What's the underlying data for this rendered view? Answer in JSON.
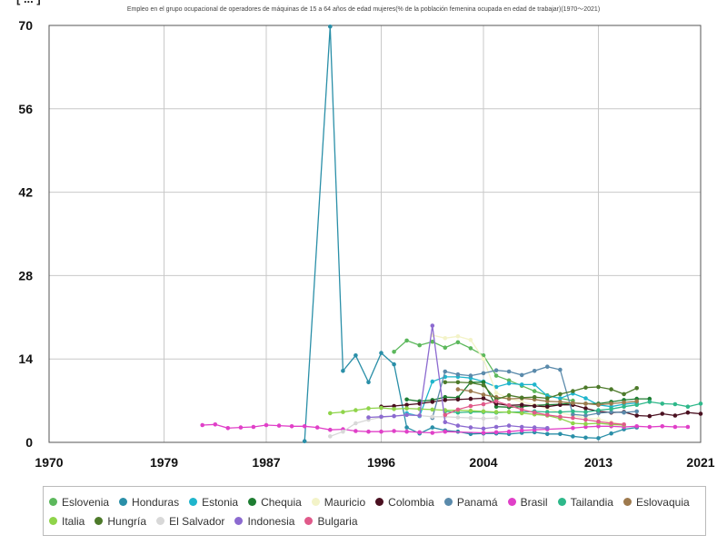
{
  "chart_data": {
    "type": "line",
    "title": "Empleo en el grupo ocupacional de operadores de máquinas de 15 a 64 años de edad mujeres(% de la población femenina ocupada en edad de trabajar)(1970〜2021)",
    "corner_label": "[ ... ]",
    "xlabel": "",
    "ylabel": "",
    "xlim": [
      1970,
      2021
    ],
    "ylim": [
      0,
      70
    ],
    "x_ticks": [
      "1970",
      "1979",
      "1987",
      "1996",
      "2004",
      "2013",
      "2021"
    ],
    "y_ticks": [
      "0",
      "14",
      "28",
      "42",
      "56",
      "70"
    ],
    "grid": true,
    "legend_position": "bottom",
    "series": [
      {
        "name": "Eslovenia",
        "color": "#5cb85c",
        "points": [
          [
            1997,
            15.2
          ],
          [
            1998,
            17.1
          ],
          [
            1999,
            16.3
          ],
          [
            2000,
            16.9
          ],
          [
            2001,
            15.9
          ],
          [
            2002,
            16.8
          ],
          [
            2003,
            15.8
          ],
          [
            2004,
            14.6
          ],
          [
            2005,
            11.2
          ],
          [
            2006,
            10.4
          ],
          [
            2007,
            9.5
          ],
          [
            2008,
            8.6
          ],
          [
            2009,
            7.9
          ],
          [
            2010,
            7.4
          ],
          [
            2011,
            7.0
          ]
        ]
      },
      {
        "name": "Honduras",
        "color": "#2a8fa8",
        "points": [
          [
            1990,
            0.2
          ],
          [
            1992,
            69.8
          ],
          [
            1993,
            12.0
          ],
          [
            1994,
            14.6
          ],
          [
            1995,
            10.1
          ],
          [
            1996,
            15.0
          ],
          [
            1997,
            13.1
          ],
          [
            1998,
            2.5
          ],
          [
            1999,
            1.5
          ],
          [
            2000,
            2.5
          ],
          [
            2001,
            2.0
          ],
          [
            2002,
            1.8
          ],
          [
            2003,
            1.4
          ],
          [
            2004,
            1.5
          ],
          [
            2005,
            1.5
          ],
          [
            2006,
            1.4
          ],
          [
            2007,
            1.6
          ],
          [
            2008,
            1.7
          ],
          [
            2009,
            1.4
          ],
          [
            2010,
            1.4
          ],
          [
            2011,
            1.0
          ],
          [
            2012,
            0.8
          ],
          [
            2013,
            0.7
          ],
          [
            2014,
            1.5
          ],
          [
            2015,
            2.2
          ],
          [
            2016,
            2.5
          ]
        ]
      },
      {
        "name": "Estonia",
        "color": "#1fb5cc",
        "points": [
          [
            1998,
            4.9
          ],
          [
            1999,
            4.4
          ],
          [
            2000,
            10.2
          ],
          [
            2001,
            11.0
          ],
          [
            2002,
            11.0
          ],
          [
            2003,
            10.8
          ],
          [
            2004,
            10.2
          ],
          [
            2005,
            9.3
          ],
          [
            2006,
            9.9
          ],
          [
            2007,
            9.7
          ],
          [
            2008,
            9.7
          ],
          [
            2009,
            7.8
          ],
          [
            2010,
            7.4
          ],
          [
            2011,
            8.2
          ],
          [
            2012,
            7.4
          ],
          [
            2013,
            6.3
          ],
          [
            2014,
            6.0
          ],
          [
            2015,
            6.4
          ],
          [
            2016,
            6.6
          ]
        ]
      },
      {
        "name": "Chequia",
        "color": "#1e7d32",
        "points": [
          [
            1998,
            7.2
          ],
          [
            1999,
            6.9
          ],
          [
            2000,
            7.1
          ],
          [
            2001,
            7.6
          ],
          [
            2002,
            7.5
          ],
          [
            2003,
            10.1
          ],
          [
            2004,
            10.1
          ],
          [
            2005,
            6.0
          ],
          [
            2006,
            5.9
          ],
          [
            2007,
            6.0
          ],
          [
            2008,
            6.2
          ],
          [
            2009,
            6.3
          ],
          [
            2010,
            6.4
          ],
          [
            2011,
            6.6
          ],
          [
            2012,
            6.5
          ],
          [
            2013,
            6.5
          ],
          [
            2014,
            6.8
          ],
          [
            2015,
            7.1
          ],
          [
            2016,
            7.3
          ],
          [
            2017,
            7.3
          ]
        ]
      },
      {
        "name": "Mauricio",
        "color": "#f3f3c8",
        "points": [
          [
            2000,
            18.0
          ],
          [
            2001,
            17.5
          ],
          [
            2002,
            17.8
          ],
          [
            2003,
            17.2
          ],
          [
            2004,
            14.0
          ],
          [
            2005,
            8.3
          ],
          [
            2006,
            7.4
          ],
          [
            2007,
            6.8
          ],
          [
            2008,
            6.3
          ],
          [
            2009,
            5.7
          ],
          [
            2010,
            5.0
          ],
          [
            2011,
            4.5
          ],
          [
            2012,
            4.1
          ],
          [
            2013,
            3.9
          ],
          [
            2014,
            3.4
          ],
          [
            2015,
            3.0
          ]
        ]
      },
      {
        "name": "Colombia",
        "color": "#4a1020",
        "points": [
          [
            1996,
            6.0
          ],
          [
            1997,
            6.1
          ],
          [
            1998,
            6.3
          ],
          [
            1999,
            6.5
          ],
          [
            2000,
            6.8
          ],
          [
            2001,
            7.1
          ],
          [
            2002,
            7.2
          ],
          [
            2003,
            7.3
          ],
          [
            2004,
            7.4
          ],
          [
            2005,
            6.5
          ],
          [
            2006,
            6.2
          ],
          [
            2007,
            6.3
          ],
          [
            2008,
            6.1
          ],
          [
            2009,
            6.0
          ],
          [
            2010,
            6.3
          ],
          [
            2011,
            6.3
          ],
          [
            2012,
            5.7
          ],
          [
            2013,
            5.2
          ],
          [
            2014,
            5.0
          ],
          [
            2015,
            5.1
          ],
          [
            2016,
            4.5
          ],
          [
            2017,
            4.4
          ],
          [
            2018,
            4.8
          ],
          [
            2019,
            4.5
          ],
          [
            2020,
            5.0
          ],
          [
            2021,
            4.8
          ]
        ]
      },
      {
        "name": "Panamá",
        "color": "#5a8aab",
        "points": [
          [
            2000,
            4.1
          ],
          [
            2001,
            11.9
          ],
          [
            2002,
            11.4
          ],
          [
            2003,
            11.2
          ],
          [
            2004,
            11.6
          ],
          [
            2005,
            12.1
          ],
          [
            2006,
            11.9
          ],
          [
            2007,
            11.3
          ],
          [
            2008,
            12.0
          ],
          [
            2009,
            12.7
          ],
          [
            2010,
            12.2
          ],
          [
            2011,
            4.7
          ],
          [
            2012,
            4.5
          ],
          [
            2013,
            4.9
          ],
          [
            2014,
            5.1
          ],
          [
            2015,
            5.0
          ],
          [
            2016,
            5.2
          ]
        ]
      },
      {
        "name": "Brasil",
        "color": "#e040c8",
        "points": [
          [
            1982,
            2.9
          ],
          [
            1983,
            3.0
          ],
          [
            1984,
            2.4
          ],
          [
            1985,
            2.5
          ],
          [
            1986,
            2.6
          ],
          [
            1987,
            2.9
          ],
          [
            1988,
            2.8
          ],
          [
            1989,
            2.7
          ],
          [
            1990,
            2.7
          ],
          [
            1991,
            2.5
          ],
          [
            1992,
            2.1
          ],
          [
            1993,
            2.2
          ],
          [
            1994,
            1.9
          ],
          [
            1995,
            1.8
          ],
          [
            1996,
            1.8
          ],
          [
            1997,
            1.9
          ],
          [
            1998,
            1.8
          ],
          [
            1999,
            1.7
          ],
          [
            2000,
            1.6
          ],
          [
            2001,
            1.8
          ],
          [
            2004,
            1.6
          ],
          [
            2005,
            1.7
          ],
          [
            2006,
            1.8
          ],
          [
            2007,
            2.0
          ],
          [
            2008,
            2.1
          ],
          [
            2009,
            2.2
          ],
          [
            2011,
            2.4
          ],
          [
            2012,
            2.6
          ],
          [
            2013,
            2.7
          ],
          [
            2014,
            2.7
          ],
          [
            2015,
            2.6
          ],
          [
            2016,
            2.7
          ],
          [
            2017,
            2.6
          ],
          [
            2018,
            2.7
          ],
          [
            2019,
            2.6
          ],
          [
            2020,
            2.6
          ]
        ]
      },
      {
        "name": "Tailandia",
        "color": "#2eb88a",
        "points": [
          [
            2001,
            5.2
          ],
          [
            2002,
            5.0
          ],
          [
            2003,
            5.1
          ],
          [
            2004,
            5.1
          ],
          [
            2005,
            5.0
          ],
          [
            2006,
            5.1
          ],
          [
            2007,
            5.1
          ],
          [
            2008,
            5.2
          ],
          [
            2009,
            5.1
          ],
          [
            2010,
            5.1
          ],
          [
            2011,
            5.2
          ],
          [
            2012,
            5.1
          ],
          [
            2013,
            5.4
          ],
          [
            2014,
            5.6
          ],
          [
            2015,
            6.0
          ],
          [
            2016,
            6.3
          ],
          [
            2017,
            6.8
          ],
          [
            2018,
            6.5
          ],
          [
            2019,
            6.4
          ],
          [
            2020,
            6.0
          ],
          [
            2021,
            6.5
          ]
        ]
      },
      {
        "name": "Eslovaquia",
        "color": "#9e7a4e",
        "points": [
          [
            2002,
            8.9
          ],
          [
            2003,
            8.6
          ],
          [
            2004,
            8.0
          ],
          [
            2005,
            7.6
          ],
          [
            2006,
            7.3
          ],
          [
            2007,
            7.4
          ],
          [
            2008,
            7.2
          ],
          [
            2009,
            6.9
          ],
          [
            2010,
            6.8
          ],
          [
            2011,
            6.6
          ],
          [
            2012,
            6.5
          ],
          [
            2013,
            6.3
          ],
          [
            2014,
            6.5
          ],
          [
            2015,
            6.7
          ],
          [
            2016,
            6.9
          ]
        ]
      },
      {
        "name": "Italia",
        "color": "#8fd44a",
        "points": [
          [
            1992,
            4.9
          ],
          [
            1993,
            5.1
          ],
          [
            1994,
            5.4
          ],
          [
            1995,
            5.7
          ],
          [
            1996,
            5.8
          ],
          [
            1997,
            5.6
          ],
          [
            1998,
            5.7
          ],
          [
            1999,
            5.6
          ],
          [
            2000,
            5.5
          ],
          [
            2001,
            5.4
          ],
          [
            2002,
            5.4
          ],
          [
            2003,
            5.3
          ],
          [
            2004,
            5.2
          ],
          [
            2005,
            5.1
          ],
          [
            2006,
            5.1
          ],
          [
            2007,
            4.9
          ],
          [
            2008,
            4.7
          ],
          [
            2009,
            4.5
          ],
          [
            2010,
            4.0
          ],
          [
            2011,
            3.2
          ],
          [
            2012,
            3.1
          ],
          [
            2013,
            3.2
          ],
          [
            2014,
            3.0
          ],
          [
            2015,
            2.9
          ]
        ]
      },
      {
        "name": "Hungría",
        "color": "#4d7a2a",
        "points": [
          [
            2001,
            10.1
          ],
          [
            2002,
            10.1
          ],
          [
            2003,
            10.0
          ],
          [
            2004,
            9.6
          ],
          [
            2005,
            7.2
          ],
          [
            2006,
            7.9
          ],
          [
            2007,
            7.5
          ],
          [
            2008,
            7.6
          ],
          [
            2009,
            7.4
          ],
          [
            2010,
            8.1
          ],
          [
            2011,
            8.6
          ],
          [
            2012,
            9.2
          ],
          [
            2013,
            9.3
          ],
          [
            2014,
            8.9
          ],
          [
            2015,
            8.1
          ],
          [
            2016,
            9.1
          ]
        ]
      },
      {
        "name": "El Salvador",
        "color": "#d8d8d8",
        "points": [
          [
            1992,
            1.0
          ],
          [
            1993,
            1.8
          ],
          [
            1994,
            3.2
          ],
          [
            1995,
            3.8
          ],
          [
            1996,
            4.2
          ],
          [
            1997,
            4.4
          ],
          [
            1998,
            4.6
          ],
          [
            1999,
            4.5
          ],
          [
            2000,
            4.3
          ],
          [
            2001,
            4.3
          ],
          [
            2002,
            4.2
          ],
          [
            2003,
            4.1
          ],
          [
            2004,
            4.0
          ],
          [
            2005,
            4.1
          ]
        ]
      },
      {
        "name": "Indonesia",
        "color": "#8c6ad0",
        "points": [
          [
            1995,
            4.2
          ],
          [
            1996,
            4.3
          ],
          [
            1997,
            4.4
          ],
          [
            1998,
            4.6
          ],
          [
            1999,
            4.5
          ],
          [
            2000,
            19.6
          ],
          [
            2001,
            3.4
          ],
          [
            2002,
            2.8
          ],
          [
            2003,
            2.5
          ],
          [
            2004,
            2.3
          ],
          [
            2005,
            2.6
          ],
          [
            2006,
            2.8
          ],
          [
            2007,
            2.6
          ],
          [
            2008,
            2.5
          ],
          [
            2009,
            2.4
          ]
        ]
      },
      {
        "name": "Bulgaria",
        "color": "#e05a8a",
        "points": [
          [
            2001,
            4.6
          ],
          [
            2002,
            5.5
          ],
          [
            2003,
            6.1
          ],
          [
            2004,
            6.4
          ],
          [
            2005,
            6.9
          ],
          [
            2006,
            6.2
          ],
          [
            2007,
            5.5
          ],
          [
            2008,
            5.0
          ],
          [
            2009,
            4.6
          ],
          [
            2010,
            4.3
          ],
          [
            2011,
            4.1
          ],
          [
            2012,
            3.8
          ],
          [
            2013,
            3.5
          ],
          [
            2014,
            3.2
          ],
          [
            2015,
            3.0
          ]
        ]
      }
    ]
  }
}
